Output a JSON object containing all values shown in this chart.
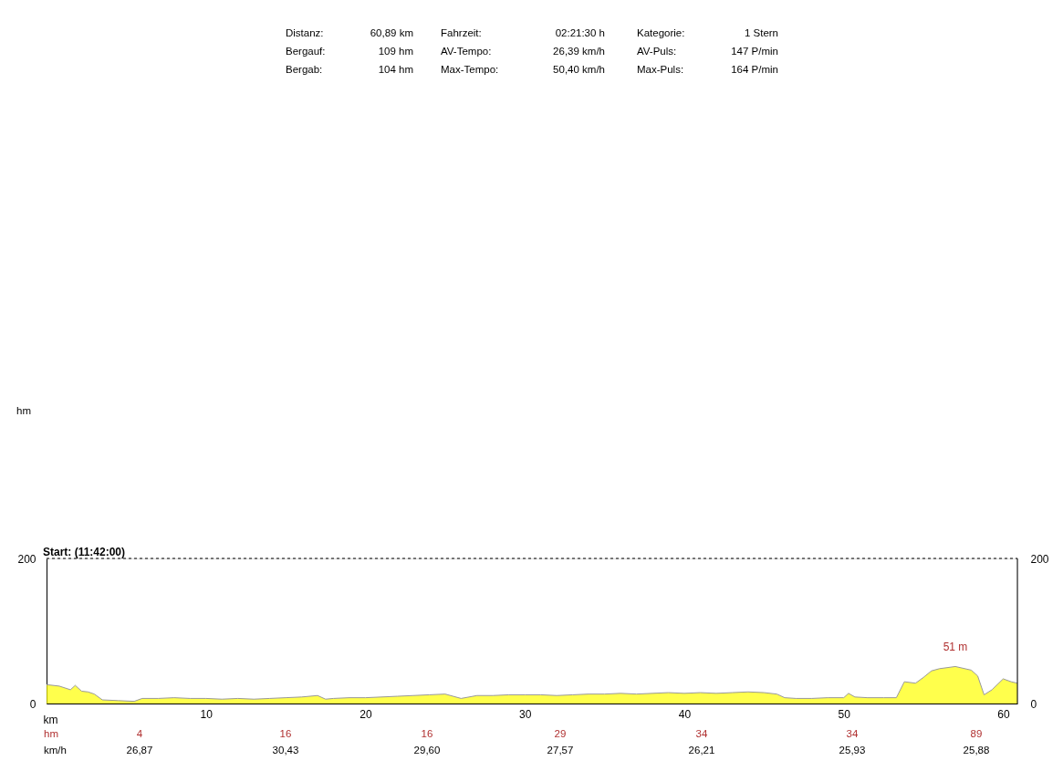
{
  "chart_data": {
    "type": "area",
    "xlabel": "km",
    "x": [
      0,
      0.8,
      1.5,
      1.8,
      2.2,
      2.6,
      3,
      3.5,
      4.5,
      5.5,
      6,
      7,
      8,
      9,
      10,
      11,
      12,
      13,
      14,
      15,
      16,
      17,
      17.5,
      18,
      19,
      20,
      21,
      22,
      23,
      24,
      25,
      26,
      27,
      28,
      29,
      30,
      31,
      32,
      33,
      34,
      35,
      36,
      37,
      38,
      39,
      40,
      41,
      42,
      43,
      44,
      45,
      45.8,
      46.3,
      47,
      48,
      49,
      50,
      50.3,
      50.7,
      51.5,
      52.5,
      53.3,
      53.8,
      54.5,
      55,
      55.5,
      56,
      57,
      58,
      58.4,
      58.8,
      59.3,
      60,
      60.5,
      60.89
    ],
    "series": [
      {
        "color": "#ffff00",
        "values": [
          26,
          24,
          19,
          25,
          17,
          16,
          13,
          5,
          4,
          3,
          7,
          7,
          8,
          7,
          7,
          6,
          7,
          6,
          7,
          8,
          9,
          11,
          6,
          7,
          8,
          8,
          9,
          10,
          11,
          12,
          13,
          7,
          11,
          11,
          12,
          12,
          12,
          11,
          12,
          13,
          13,
          14,
          13,
          14,
          15,
          14,
          15,
          14,
          15,
          16,
          15,
          13,
          8,
          7,
          7,
          8,
          8,
          14,
          9,
          8,
          8,
          8,
          30,
          28,
          36,
          45,
          48,
          51,
          46,
          38,
          12,
          19,
          34,
          30,
          28
        ]
      }
    ],
    "xlim": [
      0,
      60.89
    ],
    "xticks": [
      10,
      20,
      30,
      40,
      50,
      60
    ],
    "ylim": [
      0,
      200
    ],
    "yticks": [
      0,
      200
    ],
    "y2lim": [
      0,
      200
    ],
    "y2ticks": [
      0,
      200
    ],
    "grid": false,
    "annotations": [
      "Distanz:",
      "60,89 km",
      "Fahrzeit:",
      "02:21:30 h",
      "Kategorie:",
      "1 Stern",
      "Bergauf:",
      "109 hm",
      "AV-Tempo:",
      "26,39 km/h",
      "AV-Puls:",
      "147 P/min",
      "Bergab:",
      "104 hm",
      "Max-Tempo:",
      "50,40 km/h",
      "Max-Puls:",
      "164 P/min",
      "Start: (11:42:00)",
      "hm",
      "4",
      "16",
      "16",
      "29",
      "34",
      "34",
      "89",
      "km/h",
      "26,87",
      "30,43",
      "29,60",
      "27,57",
      "26,21",
      "25,93",
      "25,88",
      "hm",
      {
        "text": "51 m",
        "x": 57,
        "y": 51
      }
    ]
  }
}
